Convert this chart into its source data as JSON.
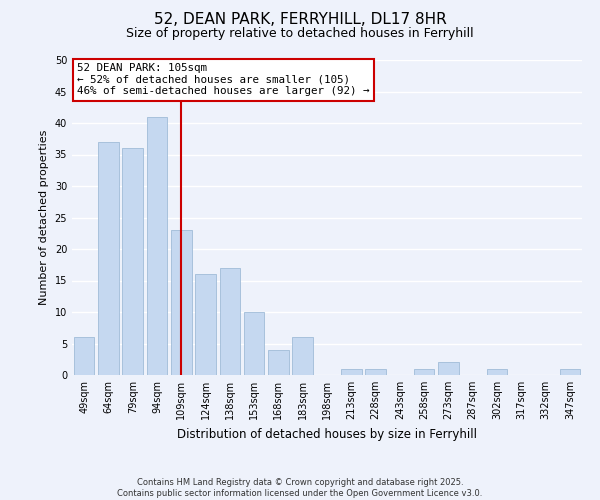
{
  "title": "52, DEAN PARK, FERRYHILL, DL17 8HR",
  "subtitle": "Size of property relative to detached houses in Ferryhill",
  "xlabel": "Distribution of detached houses by size in Ferryhill",
  "ylabel": "Number of detached properties",
  "categories": [
    "49sqm",
    "64sqm",
    "79sqm",
    "94sqm",
    "109sqm",
    "124sqm",
    "138sqm",
    "153sqm",
    "168sqm",
    "183sqm",
    "198sqm",
    "213sqm",
    "228sqm",
    "243sqm",
    "258sqm",
    "273sqm",
    "287sqm",
    "302sqm",
    "317sqm",
    "332sqm",
    "347sqm"
  ],
  "values": [
    6,
    37,
    36,
    41,
    23,
    16,
    17,
    10,
    4,
    6,
    0,
    1,
    1,
    0,
    1,
    2,
    0,
    1,
    0,
    0,
    1
  ],
  "bar_color": "#c5d8f0",
  "bar_edge_color": "#a0bcd8",
  "highlight_index": 4,
  "highlight_line_color": "#cc0000",
  "ylim": [
    0,
    50
  ],
  "yticks": [
    0,
    5,
    10,
    15,
    20,
    25,
    30,
    35,
    40,
    45,
    50
  ],
  "annotation_box_text": "52 DEAN PARK: 105sqm\n← 52% of detached houses are smaller (105)\n46% of semi-detached houses are larger (92) →",
  "annotation_box_color": "#ffffff",
  "annotation_box_edge_color": "#cc0000",
  "background_color": "#eef2fb",
  "grid_color": "#ffffff",
  "footer_line1": "Contains HM Land Registry data © Crown copyright and database right 2025.",
  "footer_line2": "Contains public sector information licensed under the Open Government Licence v3.0.",
  "title_fontsize": 11,
  "subtitle_fontsize": 9,
  "tick_fontsize": 7,
  "ylabel_fontsize": 8,
  "xlabel_fontsize": 8.5
}
